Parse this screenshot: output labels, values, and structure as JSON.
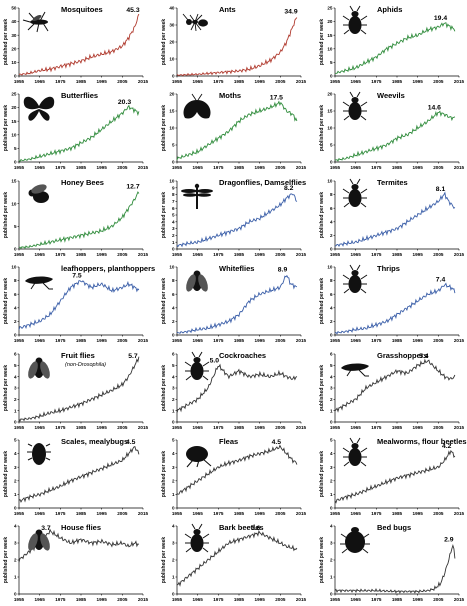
{
  "chart_data": [
    {
      "type": "line",
      "title": "Mosquitoes",
      "peak_label": "45.3",
      "ylabel": "published per week",
      "ylim": [
        0,
        50
      ],
      "yticks": [
        0,
        10,
        20,
        30,
        40,
        50
      ],
      "xlim": [
        1955,
        2015
      ],
      "xticks": [
        1955,
        1965,
        1975,
        1985,
        1995,
        2005,
        2015
      ],
      "color": "#b03a2e",
      "icon": "mosquito-icon",
      "x": [
        1955,
        1960,
        1965,
        1970,
        1975,
        1980,
        1985,
        1990,
        1995,
        2000,
        2005,
        2008,
        2011,
        2013
      ],
      "y": [
        1,
        2,
        4,
        5,
        7,
        9,
        11,
        14,
        16,
        18,
        22,
        28,
        36,
        45.3
      ]
    },
    {
      "type": "line",
      "title": "Ants",
      "peak_label": "34.9",
      "ylabel": "published per week",
      "ylim": [
        0,
        40
      ],
      "yticks": [
        0,
        10,
        20,
        30,
        40
      ],
      "xlim": [
        1955,
        2015
      ],
      "xticks": [
        1955,
        1965,
        1975,
        1985,
        1995,
        2005,
        2015
      ],
      "color": "#b03a2e",
      "icon": "ant-icon",
      "x": [
        1955,
        1965,
        1975,
        1985,
        1990,
        1995,
        2000,
        2005,
        2008,
        2010,
        2012,
        2013
      ],
      "y": [
        0.5,
        1,
        2,
        3,
        4,
        6,
        9,
        14,
        20,
        26,
        32,
        34.9
      ]
    },
    {
      "type": "line",
      "title": "Aphids",
      "peak_label": "19.4",
      "ylabel": "published per week",
      "ylim": [
        0,
        25
      ],
      "yticks": [
        0,
        5,
        10,
        15,
        20,
        25
      ],
      "xlim": [
        1955,
        2015
      ],
      "xticks": [
        1955,
        1965,
        1975,
        1985,
        1995,
        2005,
        2015
      ],
      "color": "#2e8b3a",
      "icon": "aphid-icon",
      "x": [
        1955,
        1960,
        1965,
        1970,
        1975,
        1980,
        1985,
        1990,
        1995,
        2000,
        2005,
        2008,
        2011,
        2013
      ],
      "y": [
        1,
        2,
        3,
        5,
        7,
        10,
        12,
        14,
        15,
        17,
        18,
        19.4,
        18,
        17
      ]
    },
    {
      "type": "line",
      "title": "Butterflies",
      "peak_label": "20.3",
      "ylabel": "published per week",
      "ylim": [
        0,
        25
      ],
      "yticks": [
        0,
        5,
        10,
        15,
        20,
        25
      ],
      "xlim": [
        1955,
        2015
      ],
      "xticks": [
        1955,
        1965,
        1975,
        1985,
        1995,
        2005,
        2015
      ],
      "color": "#2e8b3a",
      "icon": "butterfly-icon",
      "x": [
        1955,
        1960,
        1965,
        1970,
        1975,
        1980,
        1985,
        1990,
        1995,
        2000,
        2005,
        2008,
        2011,
        2013
      ],
      "y": [
        0.5,
        1,
        2,
        3,
        4,
        5,
        7,
        9,
        12,
        15,
        18,
        20.3,
        19,
        18
      ]
    },
    {
      "type": "line",
      "title": "Moths",
      "peak_label": "17.5",
      "ylabel": "published per week",
      "ylim": [
        0,
        20
      ],
      "yticks": [
        0,
        5,
        10,
        15,
        20
      ],
      "xlim": [
        1955,
        2015
      ],
      "xticks": [
        1955,
        1965,
        1975,
        1985,
        1995,
        2005,
        2015
      ],
      "color": "#2e8b3a",
      "icon": "moth-icon",
      "x": [
        1955,
        1960,
        1965,
        1970,
        1975,
        1980,
        1985,
        1990,
        1995,
        2000,
        2005,
        2008,
        2011,
        2013
      ],
      "y": [
        1,
        2,
        3,
        5,
        7,
        9,
        12,
        14,
        15,
        16,
        17.5,
        15,
        14,
        12
      ]
    },
    {
      "type": "line",
      "title": "Weevils",
      "peak_label": "14.6",
      "ylabel": "published per week",
      "ylim": [
        0,
        20
      ],
      "yticks": [
        0,
        5,
        10,
        15,
        20
      ],
      "xlim": [
        1955,
        2015
      ],
      "xticks": [
        1955,
        1965,
        1975,
        1985,
        1995,
        2005,
        2015
      ],
      "color": "#2e8b3a",
      "icon": "weevil-icon",
      "x": [
        1955,
        1960,
        1965,
        1970,
        1975,
        1980,
        1985,
        1990,
        1995,
        2000,
        2005,
        2008,
        2011,
        2013
      ],
      "y": [
        0.5,
        1,
        2,
        3,
        4,
        5,
        7,
        8,
        10,
        12,
        14.6,
        14,
        13,
        13
      ]
    },
    {
      "type": "line",
      "title": "Honey Bees",
      "peak_label": "12.7",
      "ylabel": "published per week",
      "ylim": [
        0,
        15
      ],
      "yticks": [
        0,
        5,
        10,
        15
      ],
      "xlim": [
        1955,
        2015
      ],
      "xticks": [
        1955,
        1965,
        1975,
        1985,
        1995,
        2005,
        2015
      ],
      "color": "#2e8b3a",
      "icon": "bee-icon",
      "x": [
        1955,
        1960,
        1965,
        1970,
        1975,
        1980,
        1985,
        1990,
        1995,
        2000,
        2005,
        2008,
        2011,
        2013
      ],
      "y": [
        0.3,
        0.5,
        1,
        1.5,
        2,
        2.5,
        3,
        3.5,
        4,
        5,
        7,
        9,
        11,
        12.7
      ]
    },
    {
      "type": "line",
      "title": "Dragonflies, Damselflies",
      "peak_label": "8.2",
      "ylabel": "published per week",
      "ylim": [
        0,
        10
      ],
      "yticks": [
        0,
        1,
        2,
        3,
        4,
        5,
        6,
        7,
        8,
        9,
        10
      ],
      "xlim": [
        1955,
        2015
      ],
      "xticks": [
        1955,
        1965,
        1975,
        1985,
        1995,
        2005,
        2015
      ],
      "color": "#3a5ea8",
      "icon": "dragonfly-icon",
      "x": [
        1955,
        1960,
        1965,
        1970,
        1975,
        1980,
        1985,
        1990,
        1995,
        2000,
        2005,
        2008,
        2011,
        2013
      ],
      "y": [
        0.5,
        0.8,
        1,
        1.5,
        2,
        2.5,
        3,
        4,
        4.5,
        5.5,
        6.5,
        7.5,
        8.2,
        7
      ]
    },
    {
      "type": "line",
      "title": "Termites",
      "peak_label": "8.1",
      "ylabel": "published per week",
      "ylim": [
        0,
        10
      ],
      "yticks": [
        0,
        2,
        4,
        6,
        8,
        10
      ],
      "xlim": [
        1955,
        2015
      ],
      "xticks": [
        1955,
        1965,
        1975,
        1985,
        1995,
        2005,
        2015
      ],
      "color": "#3a5ea8",
      "icon": "termite-icon",
      "x": [
        1955,
        1960,
        1965,
        1970,
        1975,
        1980,
        1985,
        1990,
        1995,
        2000,
        2005,
        2008,
        2010,
        2013
      ],
      "y": [
        0.5,
        0.8,
        1,
        1.5,
        2,
        2.5,
        3,
        4,
        5,
        6,
        7,
        8.1,
        7,
        6
      ]
    },
    {
      "type": "line",
      "title": "leafhoppers, planthoppers",
      "peak_label": "7.5",
      "ylabel": "published per week",
      "ylim": [
        0,
        10
      ],
      "yticks": [
        0,
        2,
        4,
        6,
        8,
        10
      ],
      "xlim": [
        1955,
        2015
      ],
      "xticks": [
        1955,
        1965,
        1975,
        1985,
        1995,
        2005,
        2015
      ],
      "color": "#3a5ea8",
      "icon": "leafhopper-icon",
      "x": [
        1955,
        1960,
        1965,
        1970,
        1975,
        1980,
        1985,
        1990,
        1995,
        2000,
        2005,
        2008,
        2011,
        2013
      ],
      "y": [
        1,
        1.5,
        2,
        3,
        5,
        7,
        8,
        7,
        7.5,
        6.5,
        7,
        7.5,
        7,
        6.5
      ]
    },
    {
      "type": "line",
      "title": "Whiteflies",
      "peak_label": "8.9",
      "ylabel": "published per week",
      "ylim": [
        0,
        10
      ],
      "yticks": [
        0,
        2,
        4,
        6,
        8,
        10
      ],
      "xlim": [
        1955,
        2015
      ],
      "xticks": [
        1955,
        1965,
        1975,
        1985,
        1995,
        2005,
        2015
      ],
      "color": "#3a5ea8",
      "icon": "whitefly-icon",
      "x": [
        1955,
        1960,
        1965,
        1970,
        1975,
        1980,
        1985,
        1990,
        1995,
        2000,
        2005,
        2008,
        2010,
        2013
      ],
      "y": [
        0.3,
        0.5,
        0.8,
        1,
        1.5,
        2,
        3,
        5,
        6,
        6.5,
        7,
        8.9,
        7.5,
        7
      ]
    },
    {
      "type": "line",
      "title": "Thrips",
      "peak_label": "7.4",
      "ylabel": "published per week",
      "ylim": [
        0,
        10
      ],
      "yticks": [
        0,
        2,
        4,
        6,
        8,
        10
      ],
      "xlim": [
        1955,
        2015
      ],
      "xticks": [
        1955,
        1965,
        1975,
        1985,
        1995,
        2005,
        2015
      ],
      "color": "#3a5ea8",
      "icon": "thrips-icon",
      "x": [
        1955,
        1960,
        1965,
        1970,
        1975,
        1980,
        1985,
        1990,
        1995,
        2000,
        2005,
        2008,
        2011,
        2013
      ],
      "y": [
        0.3,
        0.5,
        0.8,
        1,
        1.5,
        2,
        3,
        4,
        5,
        6,
        6.5,
        7.4,
        7,
        6.5
      ]
    },
    {
      "type": "line",
      "title": "Fruit flies",
      "subtitle": "(non-Drosophila)",
      "peak_label": "5.7",
      "ylabel": "published per week",
      "ylim": [
        0,
        6
      ],
      "yticks": [
        0,
        1,
        2,
        3,
        4,
        5,
        6
      ],
      "xlim": [
        1955,
        2015
      ],
      "xticks": [
        1955,
        1965,
        1975,
        1985,
        1995,
        2005,
        2015
      ],
      "color": "#333333",
      "icon": "fruitfly-icon",
      "x": [
        1955,
        1960,
        1965,
        1970,
        1975,
        1980,
        1985,
        1990,
        1995,
        2000,
        2005,
        2008,
        2011,
        2013
      ],
      "y": [
        0.2,
        0.3,
        0.5,
        0.8,
        1,
        1.3,
        1.6,
        2,
        2.4,
        2.8,
        3.3,
        4,
        5,
        5.7
      ]
    },
    {
      "type": "line",
      "title": "Cockroaches",
      "peak_label": "5.0",
      "ylabel": "published per week",
      "ylim": [
        0,
        6
      ],
      "yticks": [
        0,
        1,
        2,
        3,
        4,
        5,
        6
      ],
      "xlim": [
        1955,
        2015
      ],
      "xticks": [
        1955,
        1965,
        1975,
        1985,
        1995,
        2005,
        2015
      ],
      "color": "#333333",
      "icon": "cockroach-icon",
      "x": [
        1955,
        1960,
        1965,
        1970,
        1975,
        1980,
        1985,
        1990,
        1995,
        2000,
        2005,
        2008,
        2011,
        2013
      ],
      "y": [
        1,
        1.5,
        2,
        3,
        5,
        4,
        4.5,
        4,
        4.2,
        4,
        4.3,
        4,
        3.8,
        4
      ]
    },
    {
      "type": "line",
      "title": "Grasshoppers",
      "peak_label": "5.4",
      "ylabel": "published per week",
      "ylim": [
        0,
        6
      ],
      "yticks": [
        0,
        1,
        2,
        3,
        4,
        5,
        6
      ],
      "xlim": [
        1955,
        2015
      ],
      "xticks": [
        1955,
        1965,
        1975,
        1985,
        1995,
        2005,
        2015
      ],
      "color": "#333333",
      "icon": "grasshopper-icon",
      "x": [
        1955,
        1960,
        1965,
        1970,
        1975,
        1980,
        1985,
        1990,
        1995,
        2000,
        2005,
        2008,
        2011,
        2013
      ],
      "y": [
        1,
        1.5,
        2,
        3,
        3.5,
        4,
        4.5,
        4.3,
        5,
        5.4,
        4.5,
        4,
        3.8,
        4
      ]
    },
    {
      "type": "line",
      "title": "Scales, mealybugs",
      "peak_label": "4.5",
      "ylabel": "published per week",
      "ylim": [
        0,
        5
      ],
      "yticks": [
        0,
        1,
        2,
        3,
        4,
        5
      ],
      "xlim": [
        1955,
        2015
      ],
      "xticks": [
        1955,
        1965,
        1975,
        1985,
        1995,
        2005,
        2015
      ],
      "color": "#333333",
      "icon": "scale-insect-icon",
      "x": [
        1955,
        1960,
        1965,
        1970,
        1975,
        1980,
        1985,
        1990,
        1995,
        2000,
        2005,
        2008,
        2011,
        2013
      ],
      "y": [
        0.5,
        0.8,
        1,
        1.3,
        1.6,
        2,
        2.3,
        2.6,
        2.9,
        3.2,
        3.5,
        4,
        4.5,
        4
      ]
    },
    {
      "type": "line",
      "title": "Fleas",
      "peak_label": "4.5",
      "ylabel": "published per week",
      "ylim": [
        0,
        5
      ],
      "yticks": [
        0,
        1,
        2,
        3,
        4,
        5
      ],
      "xlim": [
        1955,
        2015
      ],
      "xticks": [
        1955,
        1965,
        1975,
        1985,
        1995,
        2005,
        2015
      ],
      "color": "#333333",
      "icon": "flea-icon",
      "x": [
        1955,
        1960,
        1965,
        1970,
        1975,
        1980,
        1985,
        1990,
        1995,
        2000,
        2005,
        2008,
        2011,
        2013
      ],
      "y": [
        1,
        1.5,
        2,
        2.5,
        3,
        3.3,
        3.5,
        3.8,
        4,
        4.2,
        4.5,
        4,
        3.5,
        3.3
      ]
    },
    {
      "type": "line",
      "title": "Mealworms, flour beetles",
      "peak_label": "4.2",
      "ylabel": "published per week",
      "ylim": [
        0,
        5
      ],
      "yticks": [
        0,
        1,
        2,
        3,
        4,
        5
      ],
      "xlim": [
        1955,
        2015
      ],
      "xticks": [
        1955,
        1965,
        1975,
        1985,
        1995,
        2005,
        2015
      ],
      "color": "#333333",
      "icon": "mealworm-beetle-icon",
      "x": [
        1955,
        1960,
        1965,
        1970,
        1975,
        1980,
        1985,
        1990,
        1995,
        2000,
        2005,
        2008,
        2011,
        2013
      ],
      "y": [
        0.5,
        0.8,
        1,
        1.3,
        1.6,
        1.9,
        2.2,
        2.4,
        2.6,
        2.8,
        3,
        3.5,
        4.2,
        3.8
      ]
    },
    {
      "type": "line",
      "title": "House flies",
      "peak_label": "3.7",
      "ylabel": "published per week",
      "ylim": [
        0,
        4
      ],
      "yticks": [
        0,
        1,
        2,
        3,
        4
      ],
      "xlim": [
        1955,
        2015
      ],
      "xticks": [
        1955,
        1965,
        1975,
        1985,
        1995,
        2005,
        2015
      ],
      "color": "#333333",
      "icon": "housefly-icon",
      "x": [
        1955,
        1960,
        1965,
        1970,
        1975,
        1980,
        1985,
        1990,
        1995,
        2000,
        2005,
        2008,
        2011,
        2013
      ],
      "y": [
        2,
        2.5,
        3,
        3.7,
        3.3,
        3,
        3.2,
        3,
        3.1,
        2.9,
        3,
        2.8,
        3,
        2.9
      ]
    },
    {
      "type": "line",
      "title": "Bark beetles",
      "peak_label": "3.6",
      "ylabel": "published per week",
      "ylim": [
        0,
        4
      ],
      "yticks": [
        0,
        1,
        2,
        3,
        4
      ],
      "xlim": [
        1955,
        2015
      ],
      "xticks": [
        1955,
        1965,
        1975,
        1985,
        1995,
        2005,
        2015
      ],
      "color": "#333333",
      "icon": "bark-beetle-icon",
      "x": [
        1955,
        1960,
        1965,
        1970,
        1975,
        1980,
        1985,
        1990,
        1995,
        2000,
        2005,
        2008,
        2011,
        2013
      ],
      "y": [
        0.5,
        1,
        1.5,
        2,
        2.5,
        3,
        3.2,
        3.4,
        3.6,
        3.3,
        3,
        2.8,
        2.7,
        2.6
      ]
    },
    {
      "type": "line",
      "title": "Bed bugs",
      "peak_label": "2.9",
      "ylabel": "published per week",
      "ylim": [
        0,
        4
      ],
      "yticks": [
        0,
        1,
        2,
        3,
        4
      ],
      "xlim": [
        1955,
        2015
      ],
      "xticks": [
        1955,
        1965,
        1975,
        1985,
        1995,
        2005,
        2015
      ],
      "color": "#333333",
      "icon": "bedbug-icon",
      "x": [
        1955,
        1965,
        1975,
        1985,
        1995,
        2000,
        2003,
        2006,
        2008,
        2010,
        2012,
        2013
      ],
      "y": [
        0.2,
        0.2,
        0.2,
        0.15,
        0.15,
        0.2,
        0.3,
        0.6,
        1.2,
        2,
        2.9,
        2.2
      ]
    }
  ]
}
